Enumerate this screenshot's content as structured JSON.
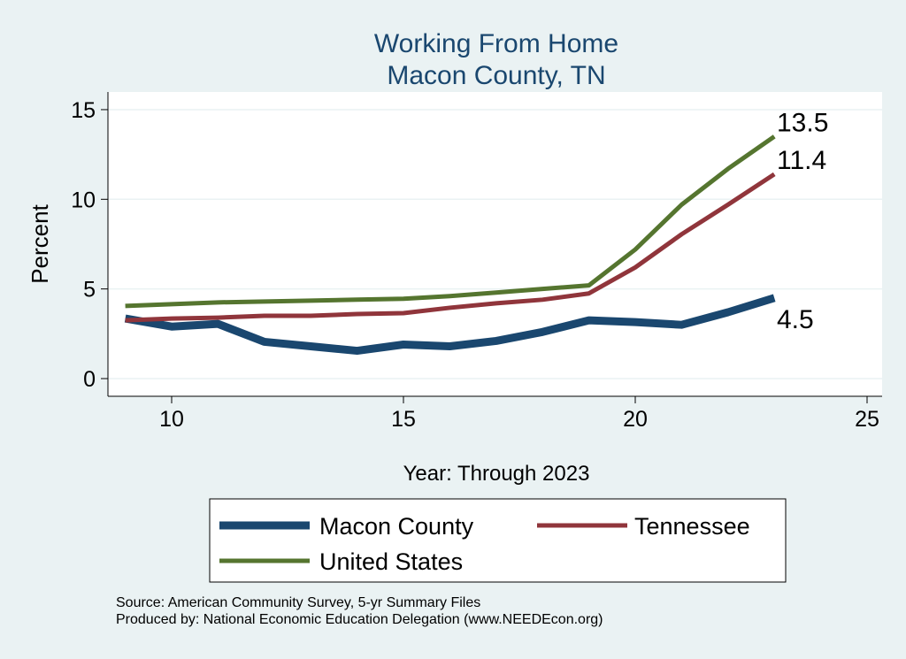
{
  "chart_data": {
    "type": "line",
    "title": "Working From Home",
    "subtitle": "Macon County, TN",
    "xlabel": "Year: Through 2023",
    "ylabel": "Percent",
    "xlim": [
      8.7,
      25.3
    ],
    "ylim": [
      -0.5,
      15.5
    ],
    "xticks": [
      10,
      15,
      20,
      25
    ],
    "yticks": [
      0,
      5,
      10,
      15
    ],
    "grid": true,
    "legend_placement": "bottom",
    "x": [
      9,
      10,
      11,
      12,
      13,
      14,
      15,
      16,
      17,
      18,
      19,
      20,
      21,
      22,
      23
    ],
    "series": [
      {
        "name": "Macon County",
        "color": "#1a476f",
        "width": 9,
        "end_label": "4.5",
        "values": [
          3.35,
          2.9,
          3.05,
          2.05,
          1.8,
          1.55,
          1.9,
          1.8,
          2.1,
          2.6,
          3.25,
          3.15,
          3.0,
          3.7,
          4.5
        ]
      },
      {
        "name": "Tennessee",
        "color": "#90353b",
        "width": 5,
        "end_label": "11.4",
        "values": [
          3.25,
          3.35,
          3.4,
          3.5,
          3.5,
          3.6,
          3.65,
          3.95,
          4.2,
          4.4,
          4.75,
          6.2,
          8.05,
          9.7,
          11.4
        ]
      },
      {
        "name": "United States",
        "color": "#55752f",
        "width": 5,
        "end_label": "13.5",
        "values": [
          4.05,
          4.15,
          4.25,
          4.3,
          4.35,
          4.4,
          4.45,
          4.6,
          4.8,
          5.0,
          5.2,
          7.2,
          9.7,
          11.7,
          13.5
        ]
      }
    ]
  },
  "footer": {
    "source": "Source: American Community Survey, 5-yr Summary Files",
    "produced": "Produced by: National Economic Education Delegation (www.NEEDEcon.org)"
  }
}
